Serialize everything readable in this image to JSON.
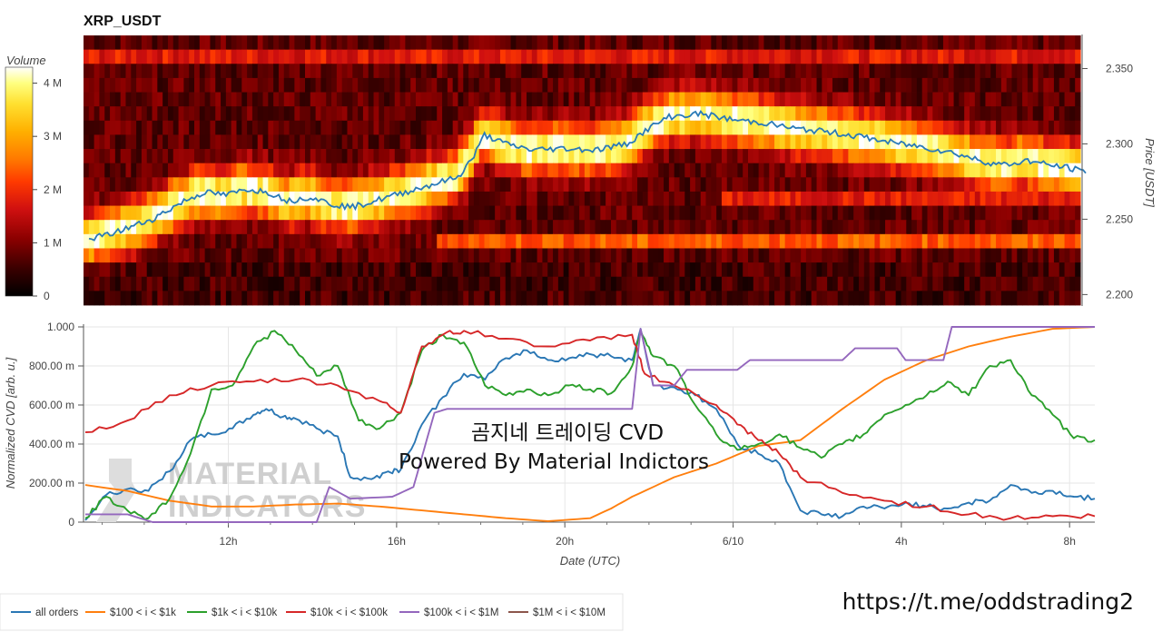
{
  "chart_data": [
    {
      "type": "heatmap",
      "title": "XRP_USDT",
      "ylabel": "Price [USDT]",
      "ylim": [
        2.193,
        2.372
      ],
      "y_ticks": [
        "2.200",
        "2.250",
        "2.300",
        "2.350"
      ],
      "y_tick_values": [
        2.2,
        2.25,
        2.3,
        2.35
      ],
      "colorbar": {
        "label": "Volume",
        "range": [
          0,
          4300000
        ],
        "ticks": [
          "0",
          "1 M",
          "2 M",
          "3 M",
          "4 M"
        ],
        "tick_values": [
          0,
          1000000,
          2000000,
          3000000,
          4000000
        ],
        "colors": [
          "#000000",
          "#3a0000",
          "#8b0000",
          "#d01010",
          "#ff3a00",
          "#ff7a00",
          "#ffb000",
          "#ffe030",
          "#ffff80",
          "#ffffff"
        ]
      },
      "price_line": {
        "color": "#2a7ab8",
        "points": [
          [
            0,
            2.237
          ],
          [
            4,
            2.24
          ],
          [
            8,
            2.245
          ],
          [
            12,
            2.25
          ],
          [
            16,
            2.258
          ],
          [
            18,
            2.262
          ],
          [
            22,
            2.268
          ],
          [
            26,
            2.266
          ],
          [
            30,
            2.27
          ],
          [
            34,
            2.268
          ],
          [
            38,
            2.262
          ],
          [
            42,
            2.265
          ],
          [
            46,
            2.26
          ],
          [
            50,
            2.258
          ],
          [
            54,
            2.262
          ],
          [
            58,
            2.266
          ],
          [
            62,
            2.27
          ],
          [
            66,
            2.274
          ],
          [
            70,
            2.278
          ],
          [
            73,
            2.292
          ],
          [
            75,
            2.306
          ],
          [
            79,
            2.3
          ],
          [
            84,
            2.296
          ],
          [
            90,
            2.297
          ],
          [
            96,
            2.296
          ],
          [
            102,
            2.3
          ],
          [
            106,
            2.31
          ],
          [
            110,
            2.318
          ],
          [
            116,
            2.32
          ],
          [
            122,
            2.316
          ],
          [
            128,
            2.314
          ],
          [
            134,
            2.31
          ],
          [
            140,
            2.308
          ],
          [
            146,
            2.305
          ],
          [
            152,
            2.301
          ],
          [
            158,
            2.298
          ],
          [
            164,
            2.294
          ],
          [
            170,
            2.288
          ],
          [
            174,
            2.286
          ],
          [
            178,
            2.289
          ],
          [
            182,
            2.286
          ],
          [
            186,
            2.284
          ],
          [
            188,
            2.282
          ]
        ]
      }
    },
    {
      "type": "line",
      "xlabel": "Date (UTC)",
      "ylabel": "Normalized CVD [arb. u.]",
      "ylim": [
        0,
        1000
      ],
      "x_unit": "hours since first sample",
      "x_ticks": [
        "12h",
        "16h",
        "20h",
        "6/10",
        "4h",
        "8h"
      ],
      "x_tick_values": [
        3.4,
        7.4,
        11.4,
        15.4,
        19.4,
        23.4
      ],
      "y_ticks": [
        "0",
        "200.00 m",
        "400.00 m",
        "600.00 m",
        "800.00 m",
        "1.000"
      ],
      "y_tick_values": [
        0,
        200,
        400,
        600,
        800,
        1000
      ],
      "series": [
        {
          "name": "all orders",
          "color": "#2a77b4",
          "points": [
            [
              0,
              10
            ],
            [
              0.5,
              140
            ],
            [
              1,
              170
            ],
            [
              1.5,
              160
            ],
            [
              2,
              260
            ],
            [
              2.5,
              420
            ],
            [
              3,
              450
            ],
            [
              3.5,
              480
            ],
            [
              4,
              550
            ],
            [
              4.3,
              580
            ],
            [
              4.7,
              540
            ],
            [
              5,
              530
            ],
            [
              5.5,
              480
            ],
            [
              6,
              440
            ],
            [
              6.3,
              230
            ],
            [
              6.8,
              220
            ],
            [
              7.2,
              260
            ],
            [
              7.5,
              270
            ],
            [
              8,
              500
            ],
            [
              8.5,
              640
            ],
            [
              9,
              760
            ],
            [
              9.5,
              730
            ],
            [
              10,
              840
            ],
            [
              10.5,
              880
            ],
            [
              11,
              830
            ],
            [
              11.5,
              840
            ],
            [
              12,
              860
            ],
            [
              12.5,
              850
            ],
            [
              13,
              830
            ],
            [
              13.2,
              990
            ],
            [
              13.5,
              700
            ],
            [
              14,
              690
            ],
            [
              14.5,
              650
            ],
            [
              15,
              580
            ],
            [
              15.5,
              400
            ],
            [
              16,
              350
            ],
            [
              16.5,
              300
            ],
            [
              17,
              60
            ],
            [
              17.5,
              40
            ],
            [
              18,
              30
            ],
            [
              18.5,
              80
            ],
            [
              19,
              70
            ],
            [
              19.5,
              100
            ],
            [
              20,
              80
            ],
            [
              20.5,
              70
            ],
            [
              21,
              100
            ],
            [
              21.5,
              110
            ],
            [
              22,
              190
            ],
            [
              22.5,
              150
            ],
            [
              23,
              160
            ],
            [
              23.5,
              130
            ],
            [
              24,
              120
            ]
          ]
        },
        {
          "name": "$100 < i < $1k",
          "color": "#ff7f0e",
          "points": [
            [
              0,
              190
            ],
            [
              1,
              160
            ],
            [
              2,
              110
            ],
            [
              3,
              80
            ],
            [
              4,
              80
            ],
            [
              5,
              90
            ],
            [
              6,
              95
            ],
            [
              7,
              80
            ],
            [
              8,
              60
            ],
            [
              9,
              40
            ],
            [
              10,
              20
            ],
            [
              11,
              5
            ],
            [
              12,
              20
            ],
            [
              12.5,
              70
            ],
            [
              13,
              130
            ],
            [
              14,
              230
            ],
            [
              15,
              300
            ],
            [
              16,
              390
            ],
            [
              17,
              420
            ],
            [
              18,
              580
            ],
            [
              19,
              730
            ],
            [
              20,
              830
            ],
            [
              21,
              900
            ],
            [
              22,
              950
            ],
            [
              23,
              990
            ],
            [
              24,
              1000
            ]
          ]
        },
        {
          "name": "$1k < i < $10k",
          "color": "#2ca02c",
          "points": [
            [
              0,
              20
            ],
            [
              0.5,
              130
            ],
            [
              1,
              60
            ],
            [
              1.5,
              20
            ],
            [
              2,
              120
            ],
            [
              2.5,
              350
            ],
            [
              3,
              680
            ],
            [
              3.5,
              700
            ],
            [
              4,
              900
            ],
            [
              4.5,
              980
            ],
            [
              5,
              880
            ],
            [
              5.5,
              750
            ],
            [
              6,
              800
            ],
            [
              6.5,
              520
            ],
            [
              7,
              480
            ],
            [
              7.5,
              560
            ],
            [
              8,
              880
            ],
            [
              8.5,
              960
            ],
            [
              9,
              920
            ],
            [
              9.5,
              700
            ],
            [
              10,
              650
            ],
            [
              10.5,
              680
            ],
            [
              11,
              650
            ],
            [
              11.5,
              700
            ],
            [
              12,
              680
            ],
            [
              12.5,
              660
            ],
            [
              13,
              800
            ],
            [
              13.2,
              980
            ],
            [
              13.5,
              850
            ],
            [
              14,
              800
            ],
            [
              14.5,
              600
            ],
            [
              15,
              450
            ],
            [
              15.5,
              370
            ],
            [
              16,
              400
            ],
            [
              16.5,
              450
            ],
            [
              17,
              380
            ],
            [
              17.5,
              330
            ],
            [
              18,
              400
            ],
            [
              18.5,
              450
            ],
            [
              19,
              550
            ],
            [
              19.5,
              600
            ],
            [
              20,
              650
            ],
            [
              20.5,
              720
            ],
            [
              21,
              650
            ],
            [
              21.5,
              800
            ],
            [
              22,
              830
            ],
            [
              22.5,
              650
            ],
            [
              23,
              550
            ],
            [
              23.5,
              430
            ],
            [
              24,
              420
            ]
          ]
        },
        {
          "name": "$10k < i < $100k",
          "color": "#d62728",
          "points": [
            [
              0,
              460
            ],
            [
              1,
              520
            ],
            [
              2,
              650
            ],
            [
              3,
              700
            ],
            [
              4,
              720
            ],
            [
              5,
              730
            ],
            [
              6,
              700
            ],
            [
              7,
              620
            ],
            [
              7.5,
              560
            ],
            [
              8,
              900
            ],
            [
              8.5,
              960
            ],
            [
              9,
              980
            ],
            [
              10,
              940
            ],
            [
              11,
              900
            ],
            [
              12,
              930
            ],
            [
              13,
              960
            ],
            [
              13.3,
              760
            ],
            [
              14,
              700
            ],
            [
              15,
              600
            ],
            [
              15.5,
              500
            ],
            [
              16,
              420
            ],
            [
              16.5,
              350
            ],
            [
              17,
              230
            ],
            [
              18,
              150
            ],
            [
              19,
              110
            ],
            [
              20,
              80
            ],
            [
              21,
              40
            ],
            [
              22,
              20
            ],
            [
              23,
              30
            ],
            [
              24,
              30
            ]
          ]
        },
        {
          "name": "$100k < i < $1M",
          "color": "#9467bd",
          "points": [
            [
              0,
              40
            ],
            [
              1,
              40
            ],
            [
              1.6,
              0
            ],
            [
              5.5,
              0
            ],
            [
              5.8,
              180
            ],
            [
              6.3,
              120
            ],
            [
              7.3,
              130
            ],
            [
              7.8,
              180
            ],
            [
              8.3,
              560
            ],
            [
              8.6,
              580
            ],
            [
              12,
              580
            ],
            [
              13,
              580
            ],
            [
              13.2,
              990
            ],
            [
              13.5,
              700
            ],
            [
              14,
              700
            ],
            [
              14.3,
              780
            ],
            [
              15.5,
              780
            ],
            [
              15.8,
              830
            ],
            [
              18,
              830
            ],
            [
              18.3,
              890
            ],
            [
              19.3,
              890
            ],
            [
              19.5,
              830
            ],
            [
              20.4,
              830
            ],
            [
              20.6,
              1000
            ],
            [
              24,
              1000
            ]
          ]
        },
        {
          "name": "$1M < i < $10M",
          "color": "#8c564b",
          "points": []
        }
      ]
    }
  ],
  "overlay": {
    "line1": "곰지네 트레이딩 CVD",
    "line2": "Powered By Material Indictors"
  },
  "watermark": {
    "line1": "MATERIAL",
    "line2": "INDICATORS"
  },
  "footer_link": "https://t.me/oddstrading2"
}
